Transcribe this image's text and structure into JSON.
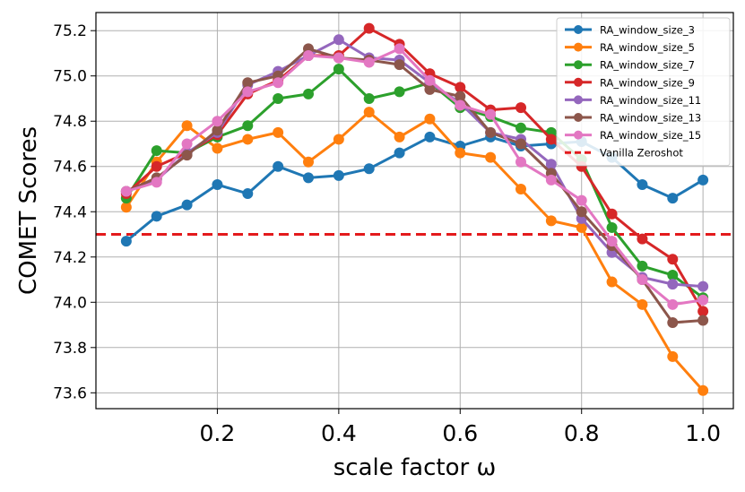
{
  "chart_data": {
    "type": "line",
    "title": "",
    "xlabel": "scale factor ω",
    "ylabel": "COMET Scores",
    "xlim": [
      0.0,
      1.05
    ],
    "ylim": [
      73.53,
      75.28
    ],
    "grid": true,
    "legend_position": "top-right",
    "x_ticks": [
      0.2,
      0.4,
      0.6,
      0.8,
      1.0
    ],
    "x_tick_labels": [
      "0.2",
      "0.4",
      "0.6",
      "0.8",
      "1.0"
    ],
    "y_ticks": [
      73.6,
      73.8,
      74.0,
      74.2,
      74.4,
      74.6,
      74.8,
      75.0,
      75.2
    ],
    "y_tick_labels": [
      "73.6",
      "73.8",
      "74.0",
      "74.2",
      "74.4",
      "74.6",
      "74.8",
      "75.0",
      "75.2"
    ],
    "x": [
      0.05,
      0.1,
      0.15,
      0.2,
      0.25,
      0.3,
      0.35,
      0.4,
      0.45,
      0.5,
      0.55,
      0.6,
      0.65,
      0.7,
      0.75,
      0.8,
      0.85,
      0.9,
      0.95,
      1.0
    ],
    "series": [
      {
        "name": "RA_window_size_3",
        "color": "#1f77b4",
        "values": [
          74.27,
          74.38,
          74.43,
          74.52,
          74.48,
          74.6,
          74.55,
          74.56,
          74.59,
          74.66,
          74.73,
          74.69,
          74.73,
          74.69,
          74.7,
          74.71,
          74.64,
          74.52,
          74.46,
          74.54
        ]
      },
      {
        "name": "RA_window_size_5",
        "color": "#ff7f0e",
        "values": [
          74.42,
          74.62,
          74.78,
          74.68,
          74.72,
          74.75,
          74.62,
          74.72,
          74.84,
          74.73,
          74.81,
          74.66,
          74.64,
          74.5,
          74.36,
          74.33,
          74.09,
          73.99,
          73.76,
          73.61
        ]
      },
      {
        "name": "RA_window_size_7",
        "color": "#2ca02c",
        "values": [
          74.46,
          74.67,
          74.66,
          74.73,
          74.78,
          74.9,
          74.92,
          75.03,
          74.9,
          74.93,
          74.97,
          74.86,
          74.82,
          74.77,
          74.75,
          74.63,
          74.33,
          74.16,
          74.12,
          74.02
        ]
      },
      {
        "name": "RA_window_size_9",
        "color": "#d62728",
        "values": [
          74.48,
          74.6,
          74.66,
          74.74,
          74.92,
          74.98,
          75.09,
          75.09,
          75.21,
          75.14,
          75.01,
          74.95,
          74.85,
          74.86,
          74.72,
          74.6,
          74.39,
          74.28,
          74.19,
          73.96
        ]
      },
      {
        "name": "RA_window_size_11",
        "color": "#9467bd",
        "values": [
          74.49,
          74.54,
          74.66,
          74.75,
          74.96,
          75.02,
          75.09,
          75.16,
          75.08,
          75.07,
          74.97,
          74.88,
          74.75,
          74.72,
          74.61,
          74.37,
          74.22,
          74.11,
          74.08,
          74.07
        ]
      },
      {
        "name": "RA_window_size_13",
        "color": "#8c564b",
        "values": [
          74.49,
          74.55,
          74.65,
          74.76,
          74.97,
          75.0,
          75.12,
          75.08,
          75.07,
          75.05,
          74.94,
          74.91,
          74.75,
          74.7,
          74.57,
          74.4,
          74.25,
          74.1,
          73.91,
          73.92
        ]
      },
      {
        "name": "RA_window_size_15",
        "color": "#e377c2",
        "values": [
          74.49,
          74.53,
          74.7,
          74.8,
          74.93,
          74.97,
          75.09,
          75.08,
          75.06,
          75.12,
          74.98,
          74.87,
          74.83,
          74.62,
          74.54,
          74.45,
          74.27,
          74.1,
          73.99,
          74.01
        ]
      }
    ],
    "reference_line": {
      "name": "Vanilla Zeroshot",
      "y": 74.3,
      "color": "#e31a1c",
      "style": "dashed"
    }
  }
}
